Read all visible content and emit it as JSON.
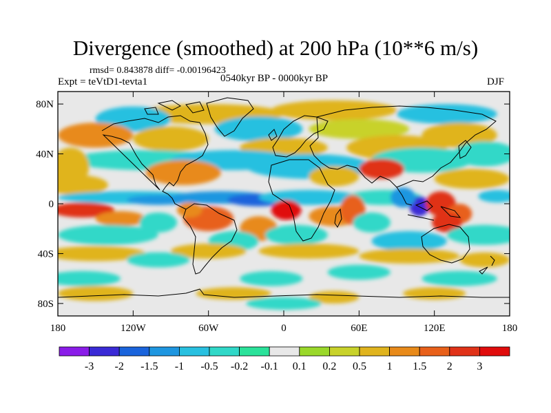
{
  "title": "Divergence (smoothed) at 200 hPa (10**6 m/s)",
  "stats": "rmsd= 0.843878  diff= -0.00196423",
  "experiment": "Expt = teVtD1-tevta1",
  "period": "0540kyr BP - 0000kyr BP",
  "season": "DJF",
  "chart_data": {
    "type": "heatmap",
    "title": "Divergence (smoothed) at 200 hPa (10**6 m/s)",
    "projection": "cylindrical equidistant",
    "xlim": [
      -180,
      180
    ],
    "ylim": [
      -90,
      90
    ],
    "x_ticks": [
      {
        "value": -180,
        "label": "180"
      },
      {
        "value": -120,
        "label": "120W"
      },
      {
        "value": -60,
        "label": "60W"
      },
      {
        "value": 0,
        "label": "0"
      },
      {
        "value": 60,
        "label": "60E"
      },
      {
        "value": 120,
        "label": "120E"
      },
      {
        "value": 180,
        "label": "180"
      }
    ],
    "y_ticks": [
      {
        "value": 80,
        "label": "80N"
      },
      {
        "value": 40,
        "label": "40N"
      },
      {
        "value": 0,
        "label": "0"
      },
      {
        "value": -40,
        "label": "40S"
      },
      {
        "value": -80,
        "label": "80S"
      }
    ],
    "colorbar": {
      "levels": [
        "-3",
        "-2",
        "-1.5",
        "-1",
        "-0.5",
        "-0.2",
        "-0.1",
        "0.1",
        "0.2",
        "0.5",
        "1",
        "1.5",
        "2",
        "3"
      ],
      "colors": [
        "#8a1ce8",
        "#3a2ad6",
        "#1a64dc",
        "#1e96e0",
        "#28c0e0",
        "#30d8c8",
        "#2ae29a",
        "#e8e8e8",
        "#9ad82a",
        "#c8d22a",
        "#e0b41e",
        "#e88a1a",
        "#e8601a",
        "#e03218",
        "#e00c0c"
      ]
    },
    "features": [
      {
        "name": "tropical-convergence-band",
        "level": -1.5,
        "lon": [
          -140,
          60
        ],
        "lat": 3
      },
      {
        "name": "atlantic-equatorial-convergence",
        "level": -2,
        "lon": [
          -40,
          10
        ],
        "lat": 5
      },
      {
        "name": "indonesian-convergence-core",
        "level": -3,
        "lon": 108,
        "lat": -2
      },
      {
        "name": "west-pacific-divergence",
        "level": 2,
        "lon": 125,
        "lat": 0
      },
      {
        "name": "east-pacific-divergence",
        "level": 2,
        "lon": -160,
        "lat": -5
      },
      {
        "name": "gulf-of-guinea-divergence",
        "level": 3,
        "lon": 2,
        "lat": -5
      },
      {
        "name": "south-america-divergence",
        "level": 1.5,
        "lon": -60,
        "lat": -12
      },
      {
        "name": "india-divergence",
        "level": 2,
        "lon": 78,
        "lat": 30
      },
      {
        "name": "north-atlantic-convergence-band",
        "level": -0.5,
        "lon": [
          -100,
          40
        ],
        "lat": 35
      },
      {
        "name": "southern-ocean-positive-band",
        "level": 0.5,
        "lon": [
          -180,
          180
        ],
        "lat": -40
      }
    ]
  }
}
